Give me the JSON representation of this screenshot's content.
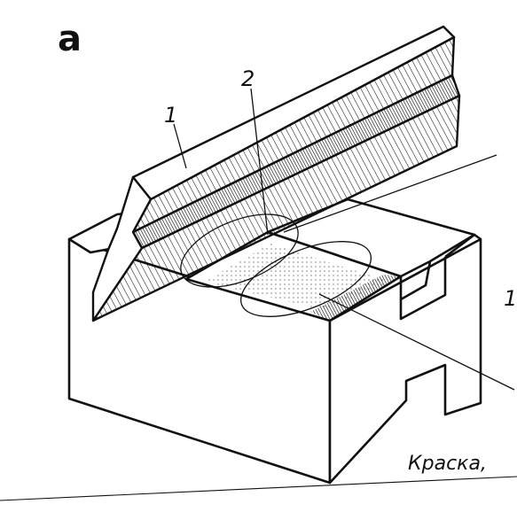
{
  "figure": {
    "panel_label": "a",
    "labels": {
      "label_ruler": "1",
      "label_contact": "2",
      "label_right": "1"
    },
    "caption": "Краска,",
    "ink_color": "#111111",
    "paper_color": "#ffffff"
  }
}
